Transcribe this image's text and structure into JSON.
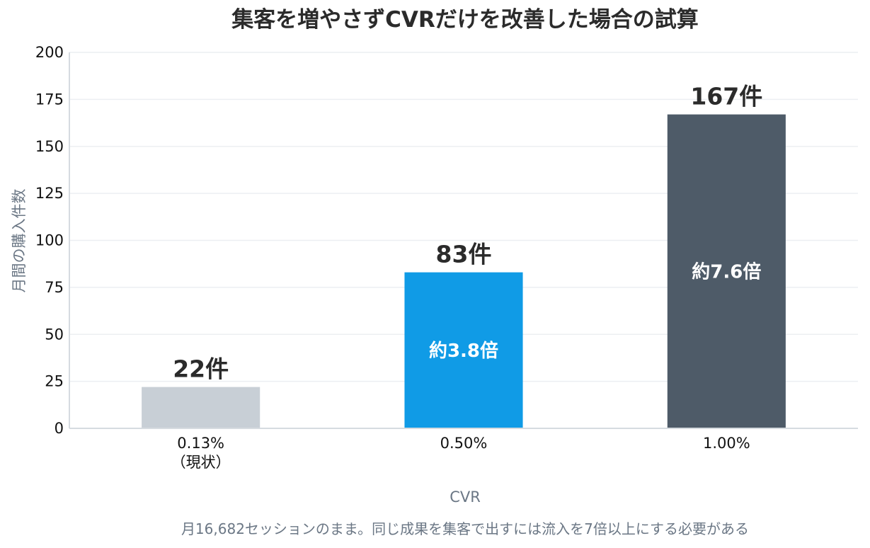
{
  "chart_data": {
    "type": "bar",
    "title": "集客を増やさずCVRだけを改善した場合の試算",
    "xlabel": "CVR",
    "ylabel": "月間の購入件数",
    "ylim": [
      0,
      200
    ],
    "yticks": [
      0,
      25,
      50,
      75,
      100,
      125,
      150,
      175,
      200
    ],
    "categories": [
      [
        "0.13%",
        "（現状）"
      ],
      [
        "0.50%"
      ],
      [
        "1.00%"
      ]
    ],
    "values": [
      22,
      83,
      167
    ],
    "value_labels": [
      "22件",
      "83件",
      "167件"
    ],
    "ratio_labels": [
      "",
      "約3.8倍",
      "約7.6倍"
    ],
    "colors": [
      "#c8cfd6",
      "#109be6",
      "#4e5b68"
    ],
    "grid": true,
    "legend": "none",
    "note": "月16,682セッションのまま。同じ成果を集客で出すには流入を7倍以上にする必要がある"
  }
}
